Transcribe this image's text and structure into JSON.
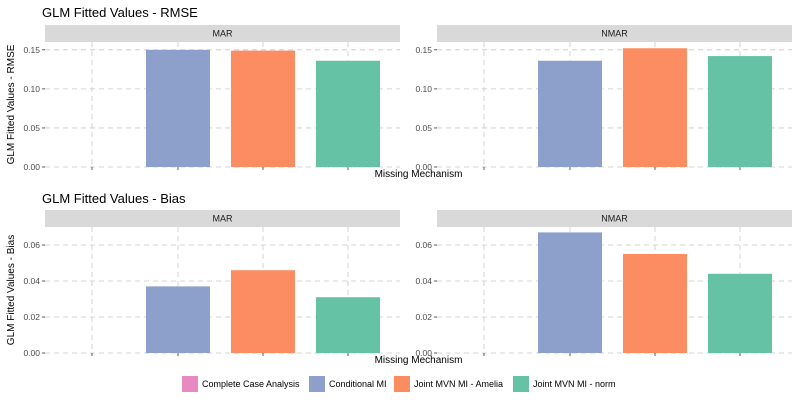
{
  "chart_data": [
    {
      "type": "bar",
      "title": "GLM Fitted Values - RMSE",
      "xlabel": "Missing Mechanism",
      "ylabel": "GLM Fitted Values - RMSE",
      "ylim": [
        0,
        0.16
      ],
      "yticks": [
        "0.00",
        "0.05",
        "0.10",
        "0.15"
      ],
      "grid": true,
      "panels": [
        {
          "name": "MAR",
          "values": [
            null,
            0.15,
            0.149,
            0.136
          ]
        },
        {
          "name": "NMAR",
          "values": [
            null,
            0.136,
            0.152,
            0.142
          ]
        }
      ]
    },
    {
      "type": "bar",
      "title": "GLM Fitted Values - Bias",
      "xlabel": "Missing Mechanism",
      "ylabel": "GLM Fitted Values - Bias",
      "ylim": [
        0,
        0.07
      ],
      "yticks": [
        "0.00",
        "0.02",
        "0.04",
        "0.06"
      ],
      "grid": true,
      "panels": [
        {
          "name": "MAR",
          "values": [
            null,
            0.037,
            0.046,
            0.031
          ]
        },
        {
          "name": "NMAR",
          "values": [
            null,
            0.067,
            0.055,
            0.044
          ]
        }
      ]
    }
  ],
  "legend": {
    "position": "bottom",
    "items": [
      {
        "label": "Complete Case Analysis",
        "color": "#e78ac3"
      },
      {
        "label": "Conditional MI",
        "color": "#8da0cb"
      },
      {
        "label": "Joint MVN MI - Amelia",
        "color": "#fc8d62"
      },
      {
        "label": "Joint MVN MI - norm",
        "color": "#66c2a5"
      }
    ]
  }
}
